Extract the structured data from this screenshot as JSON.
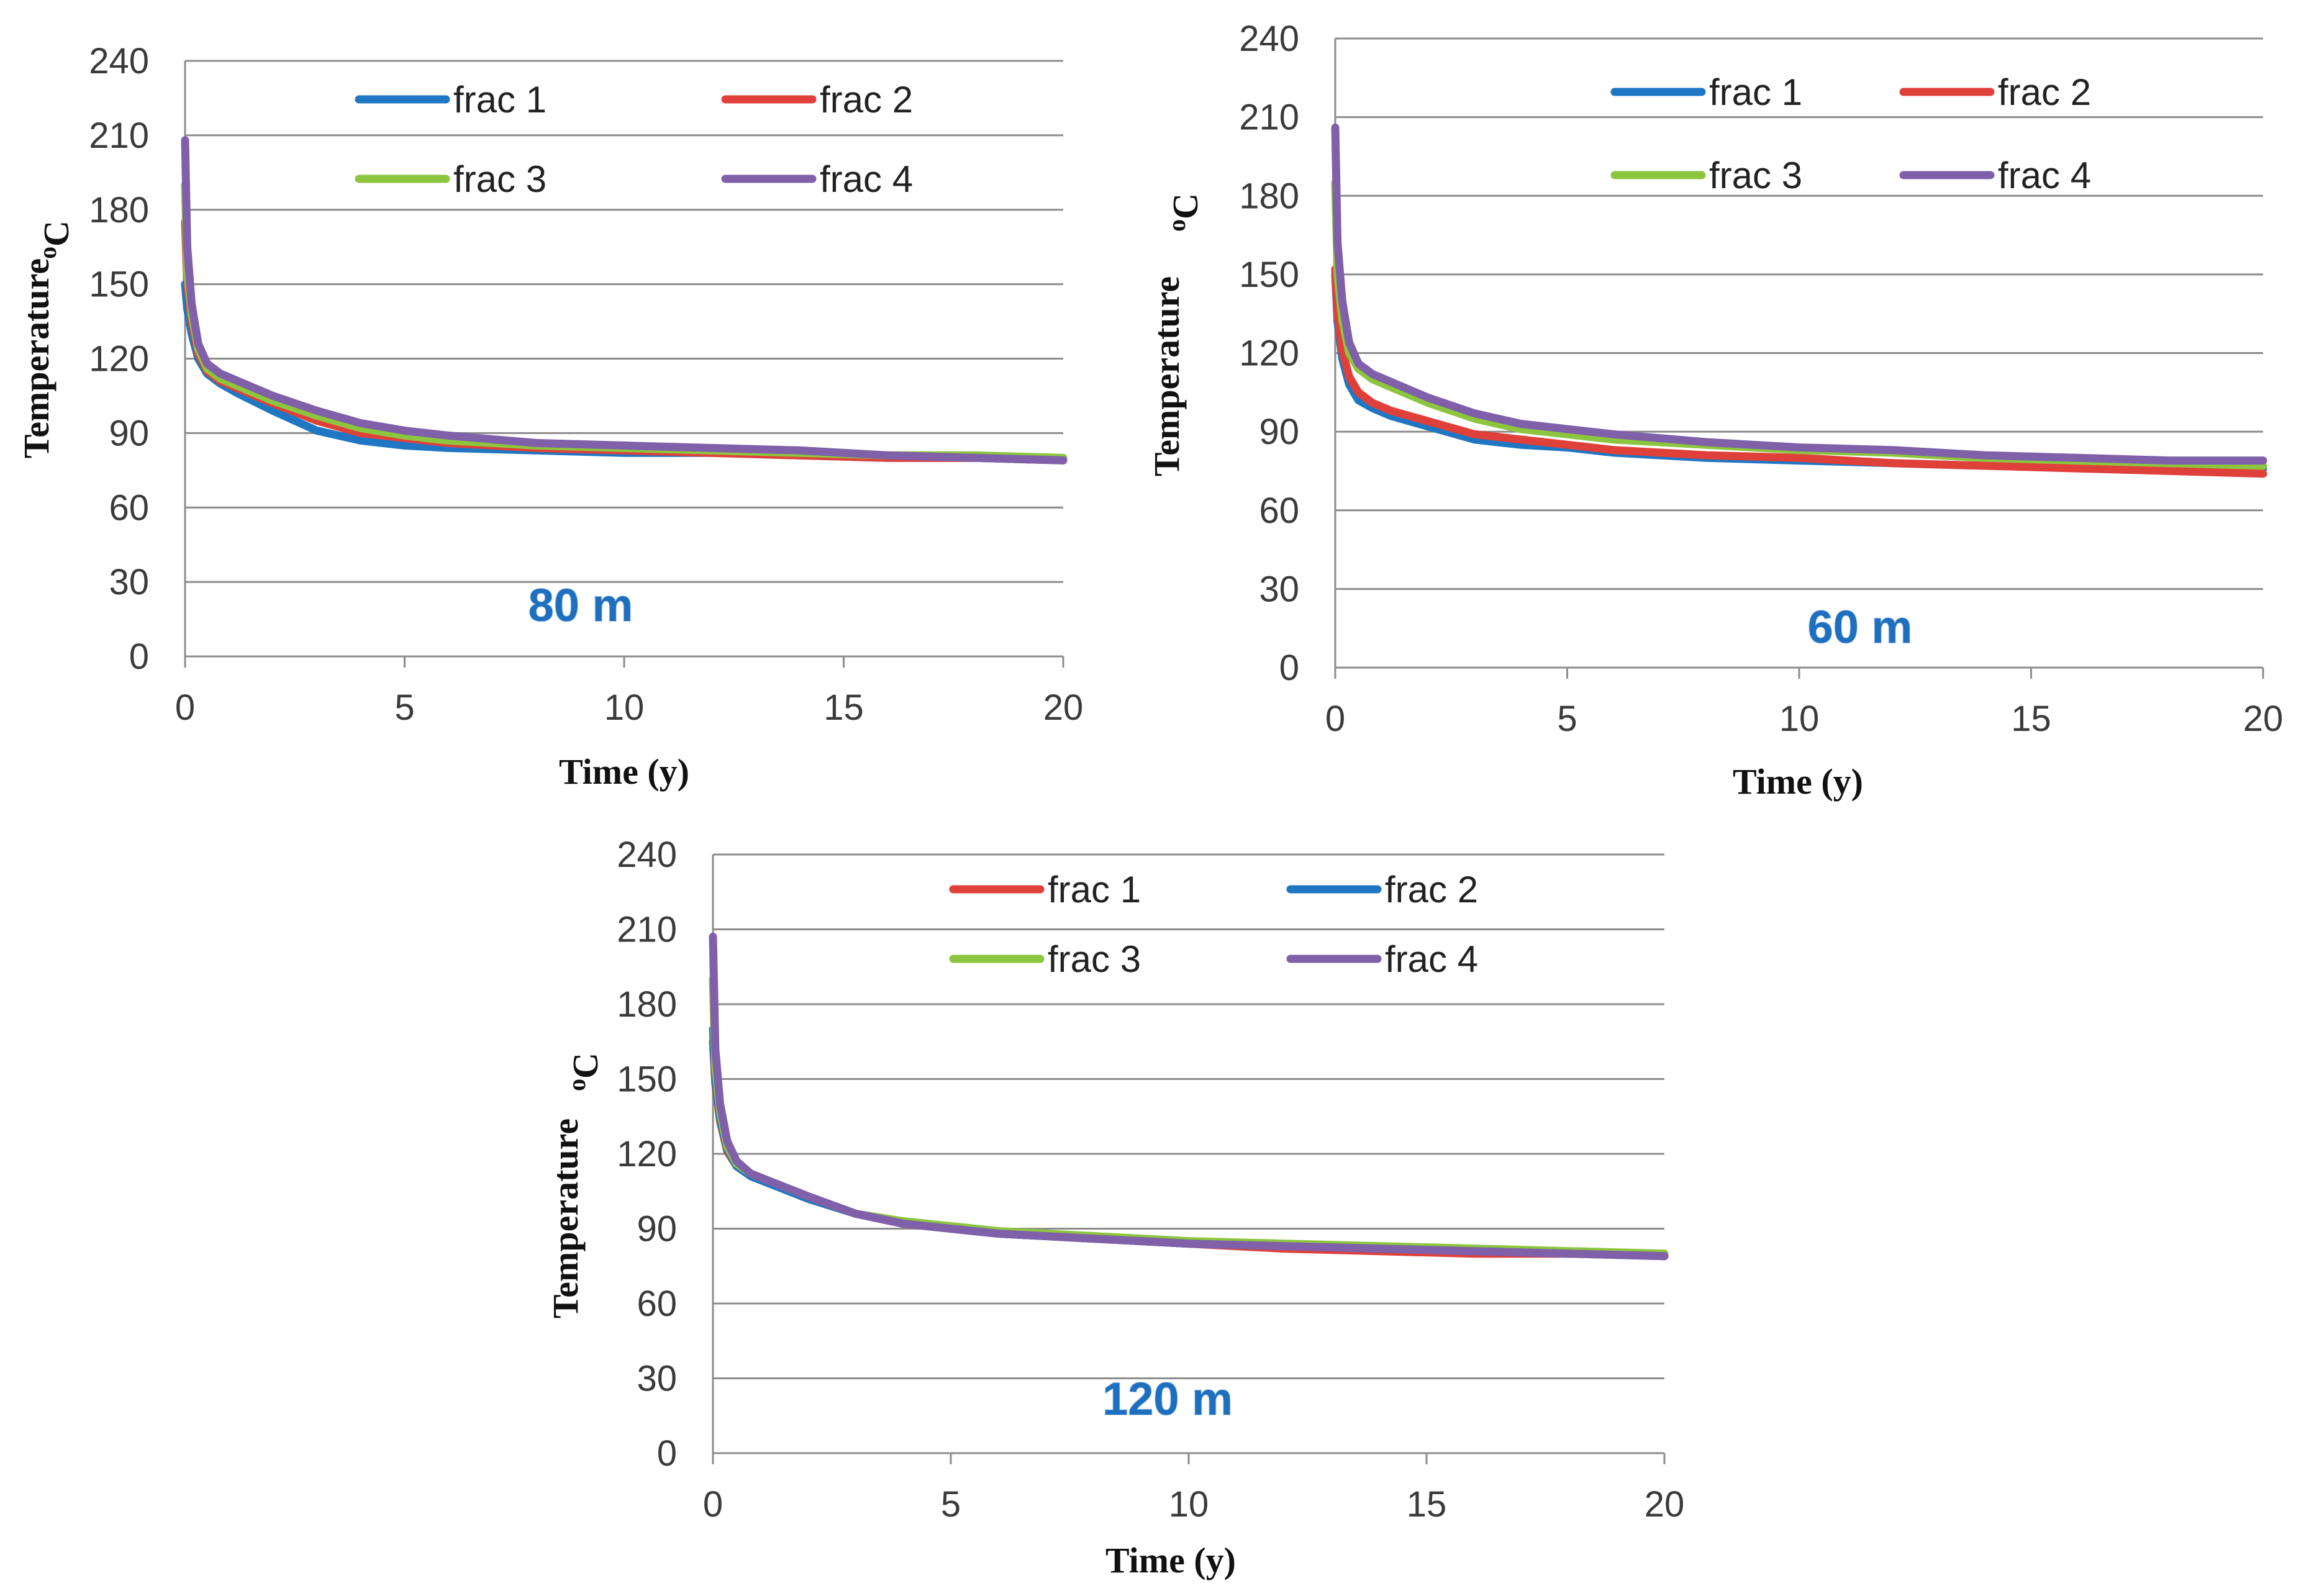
{
  "colors": {
    "blue": "#1f77c4",
    "red": "#e0403a",
    "green": "#8cc63e",
    "purple": "#8060a8",
    "title_blue": "#1f6fbf"
  },
  "chart_data": [
    {
      "type": "line",
      "title": "80 m",
      "xlabel": "Time  (y)",
      "ylabel": "Temperature",
      "ylabel_unit": "oC",
      "xlim": [
        0,
        20
      ],
      "ylim": [
        0,
        240
      ],
      "xticks": [
        "0",
        "5",
        "10",
        "15",
        "20"
      ],
      "yticks": [
        "0",
        "30",
        "60",
        "90",
        "120",
        "150",
        "180",
        "210",
        "240"
      ],
      "legend_position": "top",
      "series": [
        {
          "name": "frac 1",
          "color": "#1f77c4",
          "x": [
            0,
            0.05,
            0.15,
            0.3,
            0.5,
            0.8,
            1.2,
            2,
            3,
            4,
            5,
            6,
            8,
            10,
            12,
            14,
            16,
            18,
            20
          ],
          "y": [
            150,
            140,
            130,
            120,
            114,
            110,
            106,
            99,
            91,
            87,
            85,
            84,
            83,
            82,
            82,
            81,
            80,
            80,
            79
          ]
        },
        {
          "name": "frac 2",
          "color": "#e0403a",
          "x": [
            0,
            0.05,
            0.15,
            0.3,
            0.5,
            0.8,
            1.2,
            2,
            3,
            4,
            5,
            6,
            8,
            10,
            12,
            14,
            16,
            18,
            20
          ],
          "y": [
            175,
            150,
            135,
            122,
            115,
            111,
            108,
            102,
            95,
            90,
            88,
            86,
            84,
            83,
            82,
            81,
            80,
            80,
            79
          ]
        },
        {
          "name": "frac 3",
          "color": "#8cc63e",
          "x": [
            0,
            0.05,
            0.15,
            0.3,
            0.5,
            0.8,
            1.2,
            2,
            3,
            4,
            5,
            6,
            8,
            10,
            12,
            14,
            16,
            18,
            20
          ],
          "y": [
            190,
            155,
            138,
            124,
            116,
            112,
            109,
            103,
            97,
            92,
            89,
            87,
            85,
            84,
            83,
            82,
            81,
            81,
            80
          ]
        },
        {
          "name": "frac 4",
          "color": "#8060a8",
          "x": [
            0,
            0.05,
            0.15,
            0.3,
            0.5,
            0.8,
            1.2,
            2,
            3,
            4,
            5,
            6,
            8,
            10,
            12,
            14,
            16,
            18,
            20
          ],
          "y": [
            208,
            165,
            142,
            126,
            118,
            114,
            111,
            105,
            99,
            94,
            91,
            89,
            86,
            85,
            84,
            83,
            81,
            80,
            79
          ]
        }
      ]
    },
    {
      "type": "line",
      "title": "60 m",
      "xlabel": "Time  (y)",
      "ylabel": "Temperature",
      "ylabel_unit": "oC",
      "xlim": [
        0,
        20
      ],
      "ylim": [
        0,
        240
      ],
      "xticks": [
        "0",
        "5",
        "10",
        "15",
        "20"
      ],
      "yticks": [
        "0",
        "30",
        "60",
        "90",
        "120",
        "150",
        "180",
        "210",
        "240"
      ],
      "legend_position": "top",
      "series": [
        {
          "name": "frac 1",
          "color": "#1f77c4",
          "x": [
            0,
            0.05,
            0.15,
            0.3,
            0.5,
            0.8,
            1.2,
            2,
            3,
            4,
            5,
            6,
            8,
            10,
            12,
            14,
            16,
            18,
            20
          ],
          "y": [
            150,
            132,
            118,
            108,
            102,
            99,
            96,
            92,
            87,
            85,
            84,
            82,
            80,
            79,
            78,
            77,
            77,
            76,
            76
          ]
        },
        {
          "name": "frac 2",
          "color": "#e0403a",
          "x": [
            0,
            0.05,
            0.15,
            0.3,
            0.5,
            0.8,
            1.2,
            2,
            3,
            4,
            5,
            6,
            8,
            10,
            12,
            14,
            16,
            18,
            20
          ],
          "y": [
            152,
            135,
            121,
            111,
            105,
            101,
            98,
            94,
            89,
            87,
            85,
            83,
            81,
            80,
            78,
            77,
            76,
            75,
            74
          ]
        },
        {
          "name": "frac 3",
          "color": "#8cc63e",
          "x": [
            0,
            0.05,
            0.15,
            0.3,
            0.5,
            0.8,
            1.2,
            2,
            3,
            4,
            5,
            6,
            8,
            10,
            12,
            14,
            16,
            18,
            20
          ],
          "y": [
            185,
            150,
            133,
            120,
            114,
            110,
            107,
            101,
            95,
            91,
            89,
            87,
            85,
            83,
            82,
            80,
            79,
            78,
            77
          ]
        },
        {
          "name": "frac 4",
          "color": "#8060a8",
          "x": [
            0,
            0.05,
            0.15,
            0.3,
            0.5,
            0.8,
            1.2,
            2,
            3,
            4,
            5,
            6,
            8,
            10,
            12,
            14,
            16,
            18,
            20
          ],
          "y": [
            206,
            162,
            140,
            124,
            116,
            112,
            109,
            103,
            97,
            93,
            91,
            89,
            86,
            84,
            83,
            81,
            80,
            79,
            79
          ]
        }
      ]
    },
    {
      "type": "line",
      "title": "120 m",
      "xlabel": "Time  (y)",
      "ylabel": "Temperature",
      "ylabel_unit": "oC",
      "xlim": [
        0,
        20
      ],
      "ylim": [
        0,
        240
      ],
      "xticks": [
        "0",
        "5",
        "10",
        "15",
        "20"
      ],
      "yticks": [
        "0",
        "30",
        "60",
        "90",
        "120",
        "150",
        "180",
        "210",
        "240"
      ],
      "legend_position": "top",
      "series": [
        {
          "name": "frac 1",
          "color": "#e0403a",
          "x": [
            0,
            0.05,
            0.15,
            0.3,
            0.5,
            0.8,
            1.2,
            2,
            3,
            4,
            5,
            6,
            8,
            10,
            12,
            14,
            16,
            18,
            20
          ],
          "y": [
            165,
            148,
            133,
            121,
            115,
            111,
            108,
            102,
            96,
            92,
            90,
            88,
            86,
            84,
            82,
            81,
            80,
            80,
            79
          ]
        },
        {
          "name": "frac 2",
          "color": "#1f77c4",
          "x": [
            0,
            0.05,
            0.15,
            0.3,
            0.5,
            0.8,
            1.2,
            2,
            3,
            4,
            5,
            6,
            8,
            10,
            12,
            14,
            16,
            18,
            20
          ],
          "y": [
            170,
            150,
            134,
            122,
            115,
            111,
            108,
            102,
            96,
            92,
            90,
            88,
            86,
            84,
            83,
            82,
            81,
            80,
            79
          ]
        },
        {
          "name": "frac 3",
          "color": "#8cc63e",
          "x": [
            0,
            0.05,
            0.15,
            0.3,
            0.5,
            0.8,
            1.2,
            2,
            3,
            4,
            5,
            6,
            8,
            10,
            12,
            14,
            16,
            18,
            20
          ],
          "y": [
            190,
            155,
            137,
            123,
            116,
            112,
            109,
            103,
            96,
            93,
            91,
            89,
            87,
            85,
            84,
            83,
            82,
            81,
            80
          ]
        },
        {
          "name": "frac 4",
          "color": "#8060a8",
          "x": [
            0,
            0.05,
            0.15,
            0.3,
            0.5,
            0.8,
            1.2,
            2,
            3,
            4,
            5,
            6,
            8,
            10,
            12,
            14,
            16,
            18,
            20
          ],
          "y": [
            207,
            162,
            140,
            125,
            117,
            112,
            109,
            103,
            96,
            92,
            90,
            88,
            86,
            84,
            83,
            82,
            81,
            80,
            79
          ]
        }
      ]
    }
  ]
}
